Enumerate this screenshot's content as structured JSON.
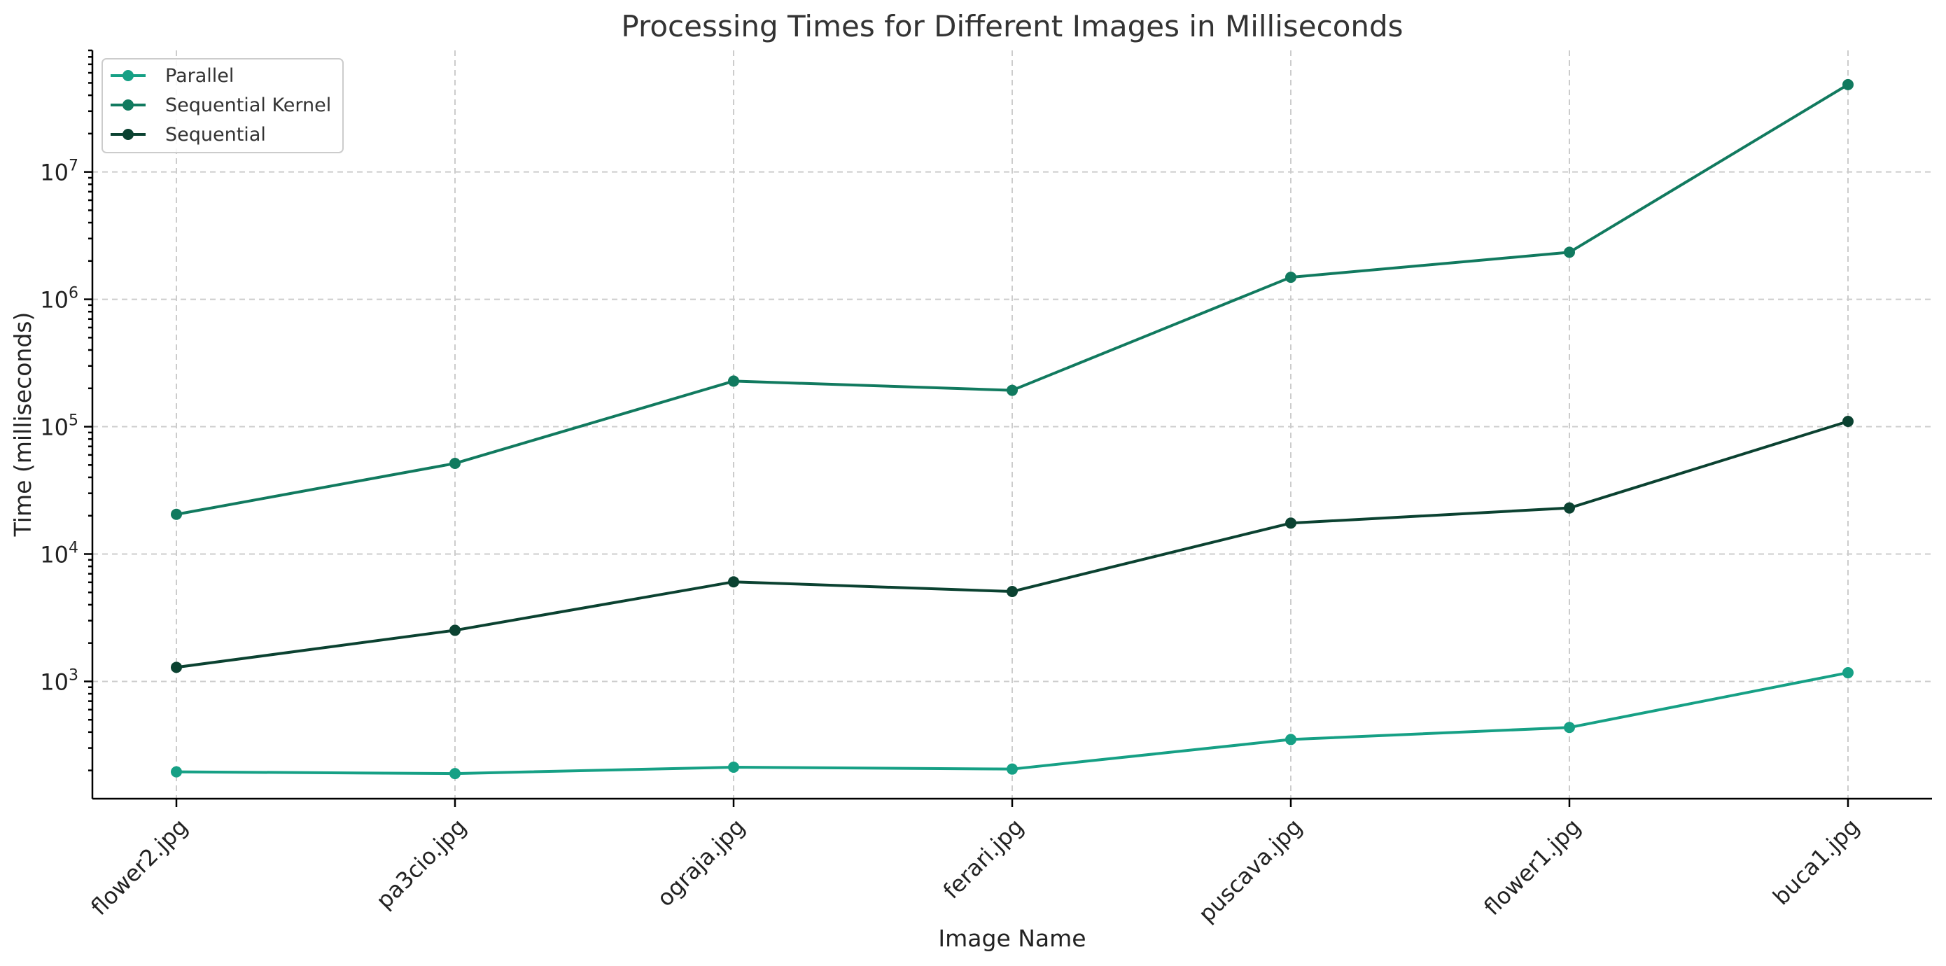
{
  "chart_data": {
    "type": "line",
    "title": "Processing Times for Different Images in Milliseconds",
    "xlabel": "Image Name",
    "ylabel": "Time (milliseconds)",
    "yscale": "log",
    "ylim": [
      120,
      90000000
    ],
    "y_ticks": [
      {
        "value": 1000,
        "base": "10",
        "exp": "3"
      },
      {
        "value": 10000,
        "base": "10",
        "exp": "4"
      },
      {
        "value": 100000,
        "base": "10",
        "exp": "5"
      },
      {
        "value": 1000000,
        "base": "10",
        "exp": "6"
      },
      {
        "value": 10000000,
        "base": "10",
        "exp": "7"
      }
    ],
    "grid": true,
    "legend_position": "top-left",
    "categories": [
      "flower2.jpg",
      "pa3cio.jpg",
      "ograja.jpg",
      "ferari.jpg",
      "puscava.jpg",
      "flower1.jpg",
      "buca1.jpg"
    ],
    "series": [
      {
        "name": "Parallel",
        "color": "#16a085",
        "values": [
          195,
          189,
          212,
          205,
          350,
          435,
          1170
        ]
      },
      {
        "name": "Sequential Kernel",
        "color": "#117a5f",
        "values": [
          20500,
          51500,
          228000,
          193000,
          1490000,
          2340000,
          48500000
        ]
      },
      {
        "name": "Sequential",
        "color": "#0b4231",
        "values": [
          1290,
          2520,
          6050,
          5080,
          17500,
          23000,
          110000
        ]
      }
    ]
  }
}
